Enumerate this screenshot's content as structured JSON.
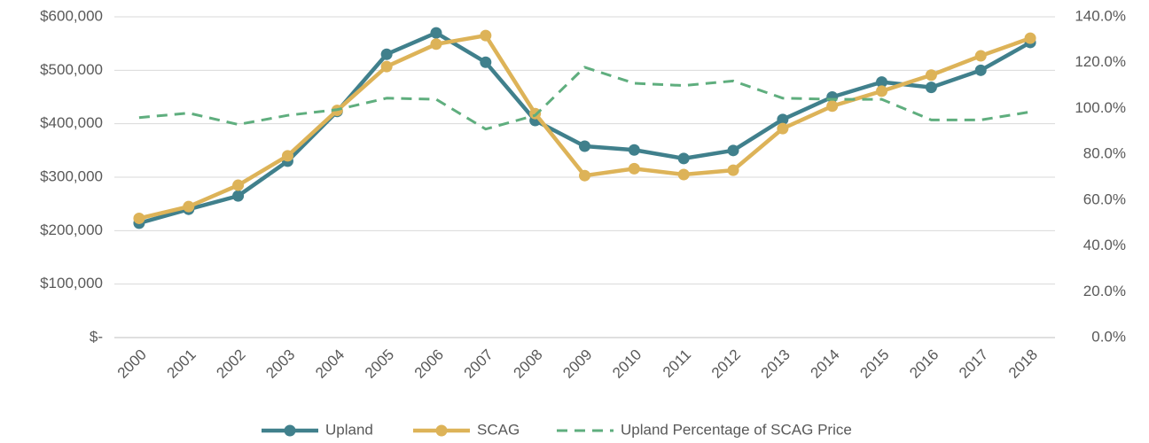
{
  "chart_data": {
    "type": "line",
    "categories": [
      "2000",
      "2001",
      "2002",
      "2003",
      "2004",
      "2005",
      "2006",
      "2007",
      "2008",
      "2009",
      "2010",
      "2011",
      "2012",
      "2013",
      "2014",
      "2015",
      "2016",
      "2017",
      "2018"
    ],
    "series": [
      {
        "name": "Upland",
        "color": "#40808c",
        "dash": false,
        "marker": true,
        "values": [
          214000,
          240000,
          265000,
          330000,
          423000,
          530000,
          570000,
          515000,
          406000,
          358000,
          351000,
          335000,
          350000,
          408000,
          450000,
          478000,
          468000,
          500000,
          552000
        ]
      },
      {
        "name": "SCAG",
        "color": "#ddb358",
        "dash": false,
        "marker": true,
        "values": [
          223000,
          245000,
          285000,
          340000,
          425000,
          507000,
          549000,
          565000,
          419000,
          303000,
          316000,
          305000,
          313000,
          391000,
          433000,
          461000,
          491000,
          527000,
          560000
        ]
      },
      {
        "name": "Upland Percentage of SCAG Price",
        "color": "#5fae7e",
        "dash": true,
        "marker": false,
        "axis": "y2",
        "values": [
          96,
          98,
          93,
          97,
          99.5,
          104.5,
          104,
          91,
          97,
          118,
          111,
          110,
          112,
          104.5,
          104,
          104,
          95,
          95,
          98.5
        ]
      }
    ],
    "ylim": [
      0,
      600000
    ],
    "yticks": [
      {
        "value": 0,
        "label": "$-"
      },
      {
        "value": 100000,
        "label": "$100,000"
      },
      {
        "value": 200000,
        "label": "$200,000"
      },
      {
        "value": 300000,
        "label": "$300,000"
      },
      {
        "value": 400000,
        "label": "$400,000"
      },
      {
        "value": 500000,
        "label": "$500,000"
      },
      {
        "value": 600000,
        "label": "$600,000"
      }
    ],
    "y2lim": [
      0,
      140
    ],
    "y2ticks": [
      {
        "value": 0,
        "label": "0.0%"
      },
      {
        "value": 20,
        "label": "20.0%"
      },
      {
        "value": 40,
        "label": "40.0%"
      },
      {
        "value": 60,
        "label": "60.0%"
      },
      {
        "value": 80,
        "label": "80.0%"
      },
      {
        "value": 100,
        "label": "100.0%"
      },
      {
        "value": 120,
        "label": "120.0%"
      },
      {
        "value": 140,
        "label": "140.0%"
      }
    ],
    "grid": true,
    "legend": "bottom"
  }
}
